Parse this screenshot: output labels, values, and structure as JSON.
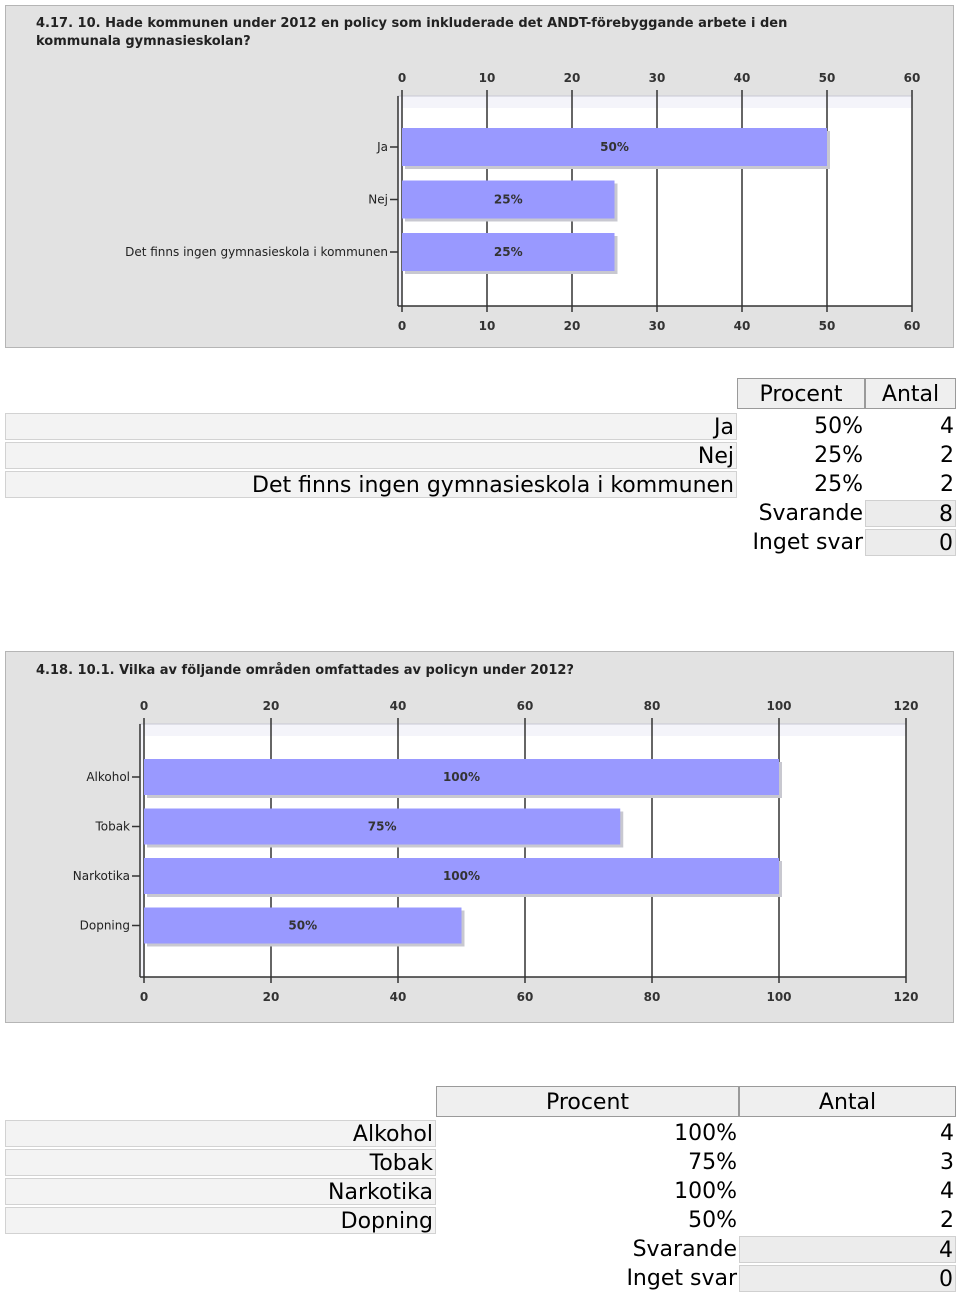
{
  "chart_data": [
    {
      "type": "bar",
      "orientation": "horizontal",
      "title": "4.17. 10. Hade kommunen under 2012 en policy som inkluderade det ANDT-förebyggande arbete i den kommunala gymnasieskolan?",
      "categories": [
        "Ja",
        "Nej",
        "Det finns ingen gymnasieskola i kommunen"
      ],
      "values": [
        50,
        25,
        25
      ],
      "data_labels": [
        "50%",
        "25%",
        "25%"
      ],
      "xlim": [
        0,
        60
      ],
      "ticks": [
        0,
        10,
        20,
        30,
        40,
        50,
        60
      ],
      "grid": true,
      "colors": {
        "bar": "#9999ff",
        "plot_bg": "#ffffff",
        "panel_bg": "#e2e2e2"
      }
    },
    {
      "type": "bar",
      "orientation": "horizontal",
      "title": "4.18. 10.1. Vilka av följande områden omfattades av policyn under 2012?",
      "categories": [
        "Alkohol",
        "Tobak",
        "Narkotika",
        "Dopning"
      ],
      "values": [
        100,
        75,
        100,
        50
      ],
      "data_labels": [
        "100%",
        "75%",
        "100%",
        "50%"
      ],
      "xlim": [
        0,
        120
      ],
      "ticks": [
        0,
        20,
        40,
        60,
        80,
        100,
        120
      ],
      "grid": true,
      "colors": {
        "bar": "#9999ff",
        "plot_bg": "#ffffff",
        "panel_bg": "#e2e2e2"
      }
    }
  ],
  "table1": {
    "headers": {
      "procent": "Procent",
      "antal": "Antal"
    },
    "rows": [
      {
        "label": "Ja",
        "procent": "50%",
        "antal": "4"
      },
      {
        "label": "Nej",
        "procent": "25%",
        "antal": "2"
      },
      {
        "label": "Det finns ingen gymnasieskola i kommunen",
        "procent": "25%",
        "antal": "2"
      }
    ],
    "summary": [
      {
        "label": "Svarande",
        "value": "8"
      },
      {
        "label": "Inget svar",
        "value": "0"
      }
    ]
  },
  "table2": {
    "headers": {
      "procent": "Procent",
      "antal": "Antal"
    },
    "rows": [
      {
        "label": "Alkohol",
        "procent": "100%",
        "antal": "4"
      },
      {
        "label": "Tobak",
        "procent": "75%",
        "antal": "3"
      },
      {
        "label": "Narkotika",
        "procent": "100%",
        "antal": "4"
      },
      {
        "label": "Dopning",
        "procent": "50%",
        "antal": "2"
      }
    ],
    "summary": [
      {
        "label": "Svarande",
        "value": "4"
      },
      {
        "label": "Inget svar",
        "value": "0"
      }
    ]
  }
}
